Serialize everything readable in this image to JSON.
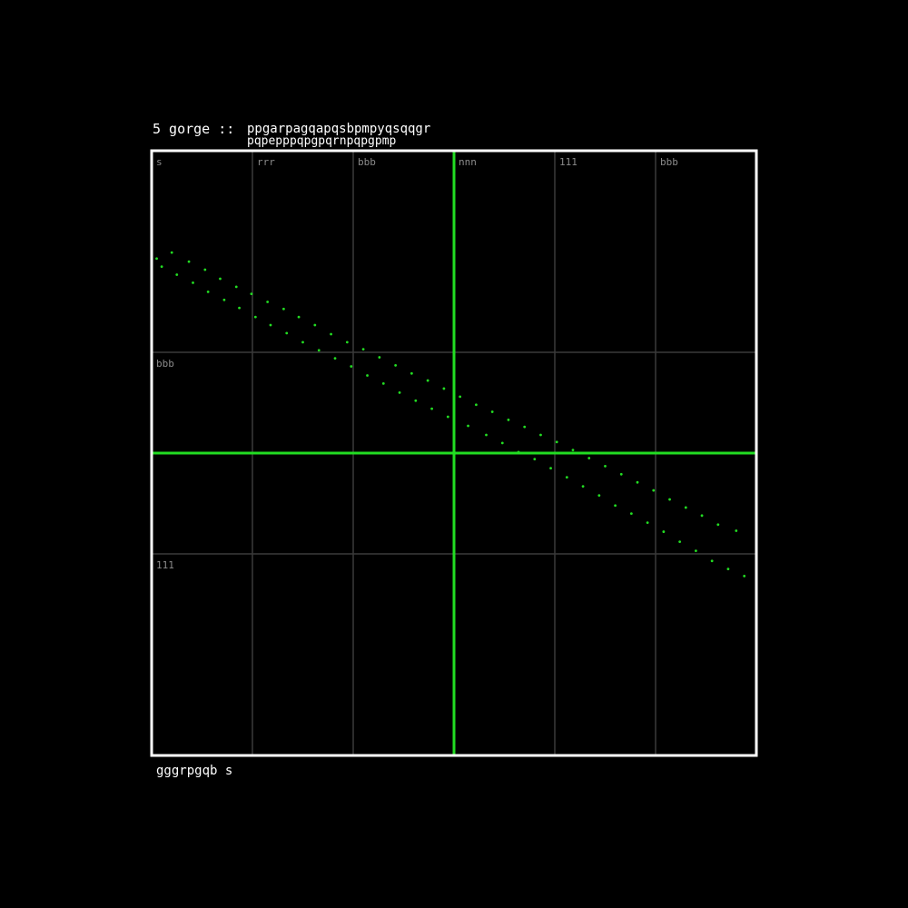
{
  "chart_data": {
    "type": "scatter",
    "title": "",
    "header_left": "5 gorge ::",
    "header_right_line1": "ppgarpagqapqsbpmpyqsqqgr",
    "header_right_line2": "pqpepppqpgpqrnpqpgpmp",
    "footer_label": "gggrpgqb  s",
    "x_tick_labels": [
      "s",
      "rrr",
      "bbb",
      "nnn",
      "111",
      "bbb"
    ],
    "y_tick_labels": [
      "bbb",
      "111"
    ],
    "xlim": [
      -3,
      3
    ],
    "ylim": [
      -3,
      3
    ],
    "grid": true,
    "axis_color": "#22dd22",
    "grid_color": "#3a3a3a",
    "frame_color": "#ffffff",
    "point_color": "#22dd22",
    "series": [
      {
        "x": [
          -2.95,
          -2.8,
          -2.63,
          -2.47,
          -2.32,
          -2.16,
          -2.01,
          -1.85,
          -1.69,
          -1.54,
          -1.38,
          -1.22,
          -1.06,
          -0.9,
          -0.74,
          -0.58,
          -0.42,
          -0.26,
          -0.1,
          0.06,
          0.22,
          0.38,
          0.54,
          0.7,
          0.86,
          1.02,
          1.18,
          1.34,
          1.5,
          1.66,
          1.82,
          1.98,
          2.14,
          2.3,
          2.46,
          2.62,
          2.8
        ],
        "y": [
          1.93,
          1.99,
          1.9,
          1.82,
          1.73,
          1.65,
          1.58,
          1.5,
          1.43,
          1.35,
          1.27,
          1.18,
          1.1,
          1.03,
          0.95,
          0.87,
          0.79,
          0.72,
          0.64,
          0.56,
          0.48,
          0.41,
          0.33,
          0.26,
          0.18,
          0.11,
          0.03,
          -0.05,
          -0.13,
          -0.21,
          -0.29,
          -0.37,
          -0.46,
          -0.54,
          -0.62,
          -0.71,
          -0.77
        ]
      },
      {
        "x": [
          -2.9,
          -2.75,
          -2.59,
          -2.44,
          -2.28,
          -2.13,
          -1.97,
          -1.82,
          -1.66,
          -1.5,
          -1.34,
          -1.18,
          -1.02,
          -0.86,
          -0.7,
          -0.54,
          -0.38,
          -0.22,
          -0.06,
          0.14,
          0.32,
          0.48,
          0.64,
          0.8,
          0.96,
          1.12,
          1.28,
          1.44,
          1.6,
          1.76,
          1.92,
          2.08,
          2.24,
          2.4,
          2.56,
          2.72,
          2.88
        ],
        "y": [
          1.85,
          1.77,
          1.69,
          1.6,
          1.52,
          1.44,
          1.35,
          1.27,
          1.19,
          1.1,
          1.02,
          0.94,
          0.86,
          0.77,
          0.69,
          0.6,
          0.52,
          0.44,
          0.36,
          0.27,
          0.18,
          0.1,
          0.01,
          -0.06,
          -0.15,
          -0.24,
          -0.33,
          -0.42,
          -0.52,
          -0.6,
          -0.69,
          -0.78,
          -0.88,
          -0.97,
          -1.07,
          -1.15,
          -1.22
        ]
      }
    ]
  }
}
